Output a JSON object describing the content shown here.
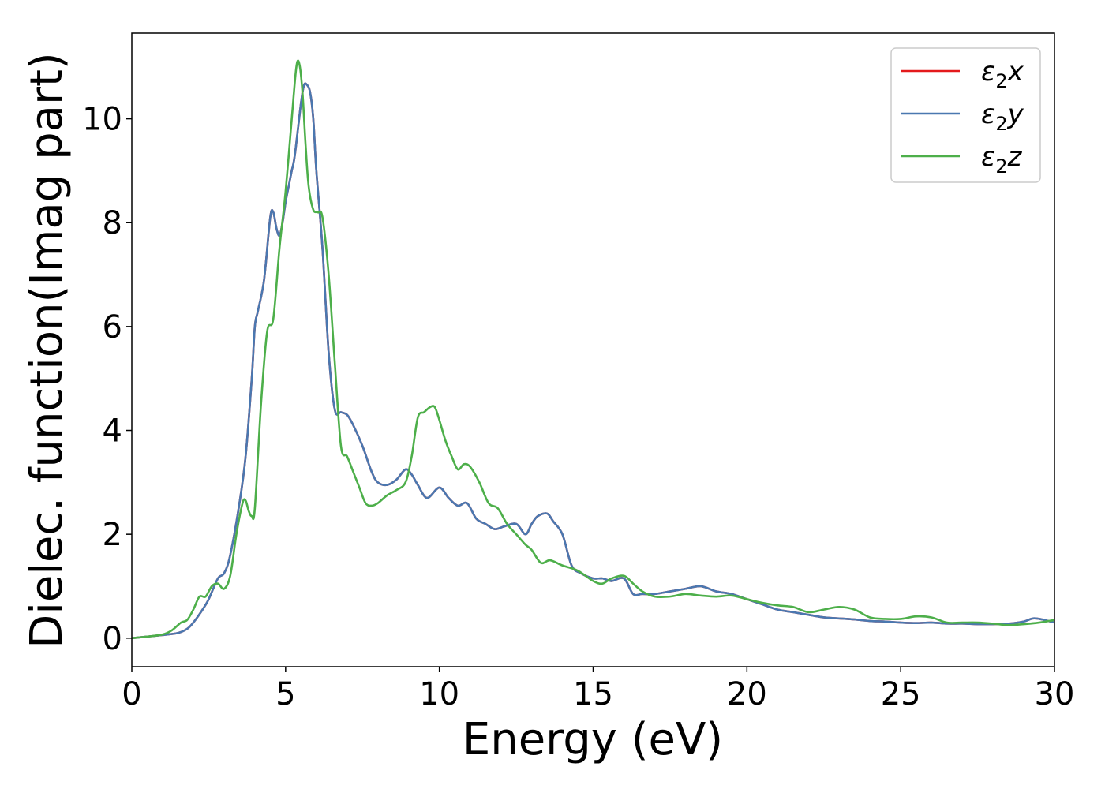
{
  "chart_data": {
    "type": "line",
    "title": "",
    "xlabel": "Energy (eV)",
    "ylabel": "Dielec. function(Imag part)",
    "xlim": [
      0,
      30
    ],
    "ylim": [
      -0.55,
      11.65
    ],
    "xticks": [
      0,
      5,
      10,
      15,
      20,
      25,
      30
    ],
    "yticks": [
      0,
      2,
      4,
      6,
      8,
      10
    ],
    "grid": false,
    "legend_position": "top-right",
    "series": [
      {
        "name": "ε₂x",
        "legend_base": "ε",
        "legend_sub": "2",
        "legend_axis": "x",
        "color": "#e41a1c",
        "x": [
          0,
          0.5,
          1,
          1.5,
          1.8,
          2,
          2.3,
          2.5,
          2.8,
          3,
          3.2,
          3.5,
          3.7,
          3.9,
          4,
          4.1,
          4.3,
          4.5,
          4.6,
          4.7,
          4.8,
          4.9,
          5,
          5.1,
          5.2,
          5.3,
          5.5,
          5.6,
          5.7,
          5.8,
          5.9,
          6,
          6.2,
          6.4,
          6.6,
          6.8,
          7,
          7.2,
          7.5,
          7.8,
          8,
          8.3,
          8.6,
          8.9,
          9.1,
          9.3,
          9.6,
          10,
          10.3,
          10.6,
          10.9,
          11.2,
          11.5,
          11.8,
          12.1,
          12.5,
          12.8,
          13,
          13.2,
          13.5,
          13.7,
          14,
          14.3,
          14.6,
          15,
          15.3,
          15.6,
          16,
          16.3,
          16.6,
          17,
          17.5,
          18,
          18.5,
          19,
          19.5,
          20,
          20.5,
          21,
          21.5,
          22,
          22.5,
          23,
          23.5,
          24,
          24.5,
          25,
          25.5,
          26,
          26.5,
          27,
          27.5,
          28,
          28.5,
          29,
          29.3,
          29.6,
          30
        ],
        "values": [
          0,
          0.03,
          0.06,
          0.1,
          0.18,
          0.3,
          0.55,
          0.75,
          1.15,
          1.25,
          1.6,
          2.6,
          3.5,
          5,
          6,
          6.3,
          6.9,
          8.1,
          8.2,
          7.9,
          7.75,
          8,
          8.4,
          8.7,
          9,
          9.3,
          10.3,
          10.65,
          10.65,
          10.5,
          10,
          9,
          7.5,
          5.5,
          4.4,
          4.35,
          4.3,
          4.1,
          3.7,
          3.2,
          3,
          2.95,
          3.05,
          3.25,
          3.15,
          2.95,
          2.7,
          2.9,
          2.7,
          2.55,
          2.6,
          2.3,
          2.2,
          2.1,
          2.15,
          2.2,
          2,
          2.2,
          2.35,
          2.4,
          2.25,
          2,
          1.4,
          1.25,
          1.15,
          1.15,
          1.1,
          1.15,
          0.85,
          0.85,
          0.85,
          0.9,
          0.95,
          1,
          0.9,
          0.85,
          0.75,
          0.65,
          0.55,
          0.5,
          0.45,
          0.4,
          0.38,
          0.36,
          0.33,
          0.32,
          0.3,
          0.29,
          0.3,
          0.28,
          0.28,
          0.27,
          0.27,
          0.28,
          0.32,
          0.38,
          0.36,
          0.3
        ]
      },
      {
        "name": "ε₂y",
        "legend_base": "ε",
        "legend_sub": "2",
        "legend_axis": "y",
        "color": "#4a78b0",
        "x": [
          0,
          0.5,
          1,
          1.5,
          1.8,
          2,
          2.3,
          2.5,
          2.8,
          3,
          3.2,
          3.5,
          3.7,
          3.9,
          4,
          4.1,
          4.3,
          4.5,
          4.6,
          4.7,
          4.8,
          4.9,
          5,
          5.1,
          5.2,
          5.3,
          5.5,
          5.6,
          5.7,
          5.8,
          5.9,
          6,
          6.2,
          6.4,
          6.6,
          6.8,
          7,
          7.2,
          7.5,
          7.8,
          8,
          8.3,
          8.6,
          8.9,
          9.1,
          9.3,
          9.6,
          10,
          10.3,
          10.6,
          10.9,
          11.2,
          11.5,
          11.8,
          12.1,
          12.5,
          12.8,
          13,
          13.2,
          13.5,
          13.7,
          14,
          14.3,
          14.6,
          15,
          15.3,
          15.6,
          16,
          16.3,
          16.6,
          17,
          17.5,
          18,
          18.5,
          19,
          19.5,
          20,
          20.5,
          21,
          21.5,
          22,
          22.5,
          23,
          23.5,
          24,
          24.5,
          25,
          25.5,
          26,
          26.5,
          27,
          27.5,
          28,
          28.5,
          29,
          29.3,
          29.6,
          30
        ],
        "values": [
          0,
          0.03,
          0.06,
          0.1,
          0.18,
          0.3,
          0.55,
          0.75,
          1.15,
          1.25,
          1.6,
          2.6,
          3.5,
          5,
          6,
          6.3,
          6.9,
          8.1,
          8.2,
          7.9,
          7.75,
          8,
          8.4,
          8.7,
          9,
          9.3,
          10.3,
          10.65,
          10.65,
          10.5,
          10,
          9,
          7.5,
          5.5,
          4.4,
          4.35,
          4.3,
          4.1,
          3.7,
          3.2,
          3,
          2.95,
          3.05,
          3.25,
          3.15,
          2.95,
          2.7,
          2.9,
          2.7,
          2.55,
          2.6,
          2.3,
          2.2,
          2.1,
          2.15,
          2.2,
          2,
          2.2,
          2.35,
          2.4,
          2.25,
          2,
          1.4,
          1.25,
          1.15,
          1.15,
          1.1,
          1.15,
          0.85,
          0.85,
          0.85,
          0.9,
          0.95,
          1,
          0.9,
          0.85,
          0.75,
          0.65,
          0.55,
          0.5,
          0.45,
          0.4,
          0.38,
          0.36,
          0.33,
          0.32,
          0.3,
          0.29,
          0.3,
          0.28,
          0.28,
          0.27,
          0.27,
          0.28,
          0.32,
          0.38,
          0.36,
          0.3
        ]
      },
      {
        "name": "ε₂z",
        "legend_base": "ε",
        "legend_sub": "2",
        "legend_axis": "z",
        "color": "#4daf4a",
        "x": [
          0,
          0.5,
          1,
          1.3,
          1.6,
          1.8,
          2,
          2.2,
          2.4,
          2.6,
          2.8,
          3,
          3.2,
          3.4,
          3.6,
          3.7,
          3.8,
          3.9,
          4,
          4.2,
          4.4,
          4.6,
          4.8,
          5,
          5.2,
          5.35,
          5.45,
          5.55,
          5.65,
          5.75,
          5.9,
          6.05,
          6.2,
          6.4,
          6.6,
          6.8,
          7,
          7.2,
          7.4,
          7.6,
          7.8,
          8,
          8.3,
          8.6,
          8.9,
          9.1,
          9.3,
          9.5,
          9.7,
          9.85,
          10,
          10.2,
          10.4,
          10.6,
          10.8,
          11,
          11.3,
          11.6,
          11.9,
          12.2,
          12.5,
          12.8,
          13,
          13.3,
          13.6,
          14,
          14.5,
          15,
          15.3,
          15.6,
          16,
          16.3,
          16.6,
          17,
          17.5,
          18,
          18.5,
          19,
          19.5,
          20,
          20.5,
          21,
          21.5,
          22,
          22.5,
          23,
          23.5,
          24,
          24.5,
          25,
          25.5,
          26,
          26.5,
          27,
          27.5,
          28,
          28.5,
          29,
          29.5,
          30
        ],
        "values": [
          0,
          0.03,
          0.07,
          0.15,
          0.3,
          0.35,
          0.55,
          0.8,
          0.8,
          1,
          1.05,
          0.95,
          1.2,
          2,
          2.6,
          2.65,
          2.45,
          2.35,
          2.5,
          4.5,
          5.9,
          6.15,
          7.5,
          8.6,
          10,
          11,
          11.05,
          10.5,
          9.5,
          8.7,
          8.25,
          8.2,
          8.1,
          7,
          5.3,
          3.7,
          3.5,
          3.2,
          2.9,
          2.6,
          2.55,
          2.6,
          2.75,
          2.85,
          3,
          3.5,
          4.25,
          4.35,
          4.45,
          4.45,
          4.2,
          3.8,
          3.5,
          3.25,
          3.35,
          3.3,
          3,
          2.6,
          2.5,
          2.2,
          2,
          1.8,
          1.7,
          1.45,
          1.5,
          1.4,
          1.3,
          1.1,
          1.05,
          1.15,
          1.2,
          1.05,
          0.9,
          0.8,
          0.8,
          0.85,
          0.82,
          0.8,
          0.82,
          0.75,
          0.68,
          0.63,
          0.6,
          0.5,
          0.55,
          0.6,
          0.55,
          0.4,
          0.37,
          0.37,
          0.42,
          0.4,
          0.3,
          0.3,
          0.3,
          0.28,
          0.25,
          0.27,
          0.3,
          0.35
        ]
      }
    ]
  }
}
